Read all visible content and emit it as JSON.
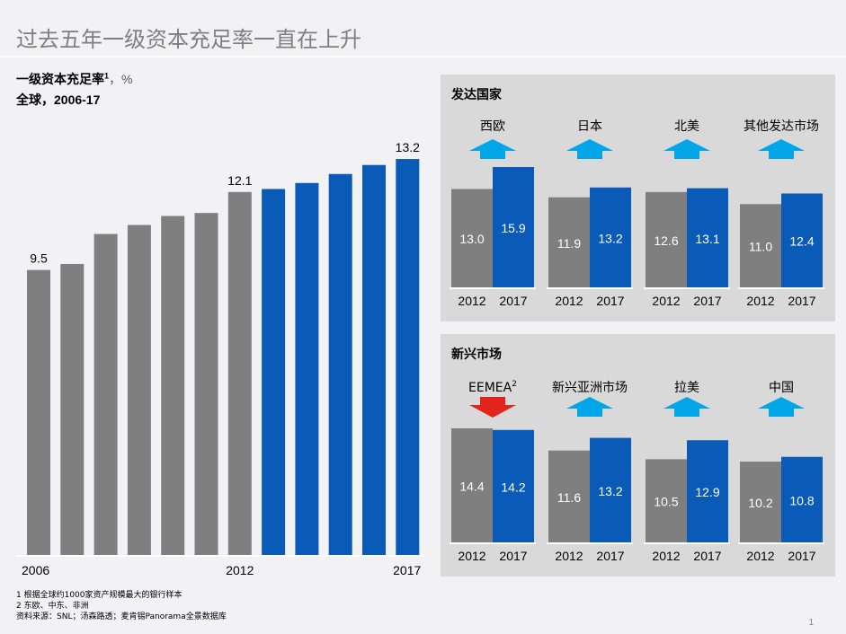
{
  "header": {
    "title": "过去五年一级资本充足率一直在上升",
    "subtitle_main": "一级资本充足率",
    "subtitle_sup": "1",
    "subtitle_unit": "，%",
    "subtitle_scope": "全球，2006-17"
  },
  "colors": {
    "gray": "#7f7f7f",
    "blue": "#0a5bb8",
    "up_arrow": "#00a6e8",
    "down_arrow": "#e2251c"
  },
  "chart_data": [
    {
      "type": "bar",
      "title": "",
      "x": [
        "2006",
        "2007",
        "2008",
        "2009",
        "2010",
        "2011",
        "2012",
        "2013",
        "2014",
        "2015",
        "2016",
        "2017"
      ],
      "values": [
        9.5,
        9.7,
        10.7,
        11.0,
        11.3,
        11.4,
        12.1,
        12.2,
        12.4,
        12.7,
        13.0,
        13.2
      ],
      "data_labels": {
        "2006": "9.5",
        "2012": "12.1",
        "2017": "13.2"
      },
      "tick_labels": [
        "2006",
        "2012",
        "2017"
      ],
      "bar_colors": [
        "gray",
        "gray",
        "gray",
        "gray",
        "gray",
        "gray",
        "gray",
        "blue",
        "blue",
        "blue",
        "blue",
        "blue"
      ],
      "ylim": [
        0,
        13.8
      ],
      "grid": false
    },
    {
      "type": "bar",
      "group": "发达国家",
      "categories": [
        "2012",
        "2017"
      ],
      "series": [
        {
          "name": "西欧",
          "values": [
            13.0,
            15.9
          ],
          "labels": [
            "13.0",
            "15.9"
          ],
          "trend": "up"
        },
        {
          "name": "日本",
          "values": [
            11.9,
            13.2
          ],
          "labels": [
            "11.9",
            "13.2"
          ],
          "trend": "up"
        },
        {
          "name": "北美",
          "values": [
            12.6,
            13.1
          ],
          "labels": [
            "12.6",
            "13.1"
          ],
          "trend": "up"
        },
        {
          "name": "其他发达市场",
          "values": [
            11.0,
            12.4
          ],
          "labels": [
            "11.0",
            "12.4"
          ],
          "trend": "up"
        }
      ],
      "ylim": [
        0,
        15.9
      ]
    },
    {
      "type": "bar",
      "group": "新兴市场",
      "categories": [
        "2012",
        "2017"
      ],
      "series": [
        {
          "name": "EEMEA",
          "sup": "2",
          "values": [
            14.4,
            14.2
          ],
          "labels": [
            "14.4",
            "14.2"
          ],
          "trend": "down"
        },
        {
          "name": "新兴亚洲市场",
          "values": [
            11.6,
            13.2
          ],
          "labels": [
            "11.6",
            "13.2"
          ],
          "trend": "up"
        },
        {
          "name": "拉美",
          "values": [
            10.5,
            12.9
          ],
          "labels": [
            "10.5",
            "12.9"
          ],
          "trend": "up"
        },
        {
          "name": "中国",
          "values": [
            10.2,
            10.8
          ],
          "labels": [
            "10.2",
            "10.8"
          ],
          "trend": "up"
        }
      ],
      "ylim": [
        0,
        14.4
      ]
    }
  ],
  "footnotes": {
    "note1": "1 根据全球约1000家资产规模最大的银行样本",
    "note2": "2 东欧、中东、非洲",
    "source": "资料来源：SNL；汤森路透；麦肯锡Panorama全景数据库"
  },
  "page_number": "1"
}
